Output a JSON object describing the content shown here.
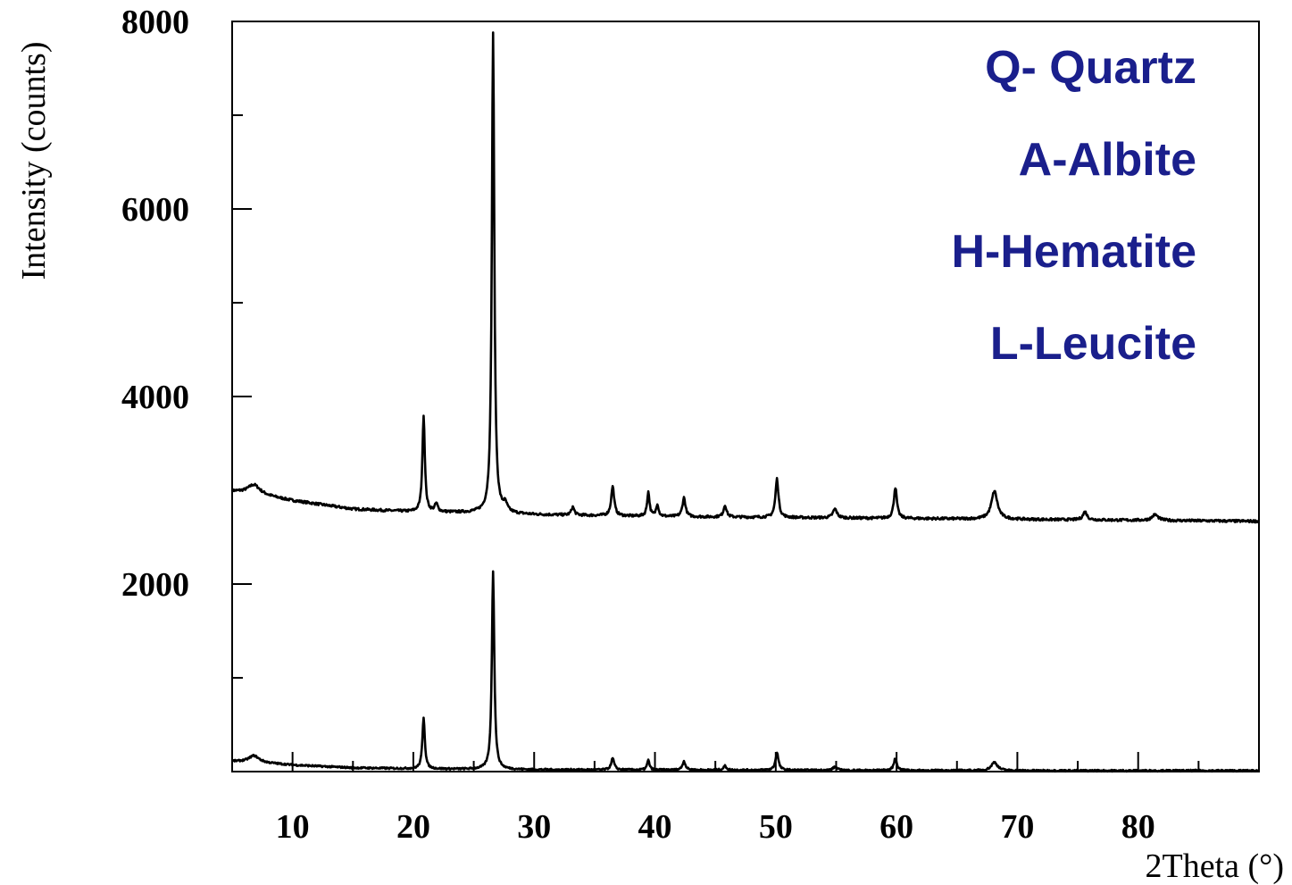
{
  "chart_data": {
    "type": "line",
    "xlabel": "2Theta (°)",
    "ylabel": "Intensity (counts)",
    "xlim": [
      5,
      90
    ],
    "ylim": [
      0,
      8000
    ],
    "x_ticks": [
      10,
      20,
      30,
      40,
      50,
      60,
      70,
      80
    ],
    "y_ticks": [
      2000,
      4000,
      6000,
      8000
    ],
    "grid": false,
    "annotations": [
      "Q- Quartz",
      "A-Albite",
      "H-Hematite",
      "L-Leucite"
    ],
    "annotation_color": "#1a1f8c",
    "series": [
      {
        "baseline": [
          [
            5,
            2990
          ],
          [
            7,
            2960
          ],
          [
            10,
            2890
          ],
          [
            15,
            2800
          ],
          [
            20,
            2770
          ],
          [
            25,
            2760
          ],
          [
            30,
            2740
          ],
          [
            40,
            2720
          ],
          [
            50,
            2710
          ],
          [
            60,
            2700
          ],
          [
            70,
            2690
          ],
          [
            80,
            2680
          ],
          [
            90,
            2670
          ]
        ],
        "peaks": [
          {
            "x": 6.8,
            "y": 3060,
            "w": 0.6
          },
          {
            "x": 20.85,
            "y": 3800,
            "w": 0.12
          },
          {
            "x": 21.9,
            "y": 2850,
            "w": 0.15
          },
          {
            "x": 26.6,
            "y": 7880,
            "w": 0.12
          },
          {
            "x": 27.6,
            "y": 2830,
            "w": 0.2
          },
          {
            "x": 33.2,
            "y": 2820,
            "w": 0.15
          },
          {
            "x": 36.5,
            "y": 3040,
            "w": 0.15
          },
          {
            "x": 39.45,
            "y": 2980,
            "w": 0.12
          },
          {
            "x": 40.2,
            "y": 2850,
            "w": 0.12
          },
          {
            "x": 42.4,
            "y": 2920,
            "w": 0.15
          },
          {
            "x": 45.8,
            "y": 2840,
            "w": 0.15
          },
          {
            "x": 50.1,
            "y": 3120,
            "w": 0.15
          },
          {
            "x": 54.9,
            "y": 2800,
            "w": 0.2
          },
          {
            "x": 59.9,
            "y": 3030,
            "w": 0.15
          },
          {
            "x": 68.1,
            "y": 2990,
            "w": 0.3
          },
          {
            "x": 75.6,
            "y": 2770,
            "w": 0.2
          },
          {
            "x": 81.4,
            "y": 2740,
            "w": 0.3
          }
        ]
      },
      {
        "baseline": [
          [
            5,
            110
          ],
          [
            7,
            100
          ],
          [
            10,
            70
          ],
          [
            15,
            40
          ],
          [
            20,
            30
          ],
          [
            30,
            20
          ],
          [
            50,
            15
          ],
          [
            70,
            10
          ],
          [
            90,
            10
          ]
        ],
        "peaks": [
          {
            "x": 6.8,
            "y": 170,
            "w": 0.5
          },
          {
            "x": 20.85,
            "y": 580,
            "w": 0.12
          },
          {
            "x": 26.6,
            "y": 2140,
            "w": 0.12
          },
          {
            "x": 36.5,
            "y": 140,
            "w": 0.15
          },
          {
            "x": 39.45,
            "y": 120,
            "w": 0.12
          },
          {
            "x": 42.4,
            "y": 110,
            "w": 0.15
          },
          {
            "x": 45.8,
            "y": 60,
            "w": 0.15
          },
          {
            "x": 50.1,
            "y": 200,
            "w": 0.15
          },
          {
            "x": 54.9,
            "y": 50,
            "w": 0.2
          },
          {
            "x": 59.9,
            "y": 140,
            "w": 0.15
          },
          {
            "x": 68.1,
            "y": 100,
            "w": 0.3
          }
        ]
      }
    ]
  }
}
